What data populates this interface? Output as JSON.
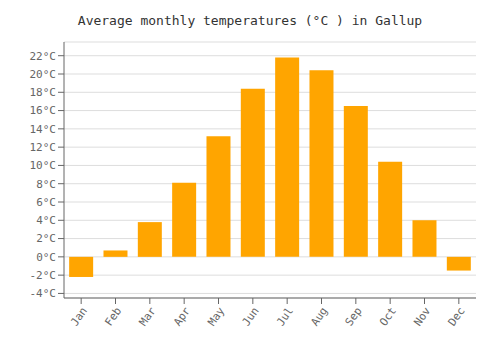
{
  "chart_data": {
    "type": "bar",
    "title": "Average monthly temperatures (°C ) in Gallup",
    "categories": [
      "Jan",
      "Feb",
      "Mar",
      "Apr",
      "May",
      "Jun",
      "Jul",
      "Aug",
      "Sep",
      "Oct",
      "Nov",
      "Dec"
    ],
    "values": [
      -2.2,
      0.7,
      3.8,
      8.1,
      13.2,
      18.4,
      21.8,
      20.4,
      16.5,
      10.4,
      4.0,
      -1.5
    ],
    "color": "#FFA500",
    "ylim": [
      -4.5,
      23.5
    ],
    "yticks": [
      {
        "value": -4,
        "label": "-4°C"
      },
      {
        "value": -2,
        "label": "-2°C"
      },
      {
        "value": 0,
        "label": "0°C"
      },
      {
        "value": 2,
        "label": "2°C"
      },
      {
        "value": 4,
        "label": "4°C"
      },
      {
        "value": 6,
        "label": "6°C"
      },
      {
        "value": 8,
        "label": "8°C"
      },
      {
        "value": 10,
        "label": "10°C"
      },
      {
        "value": 12,
        "label": "12°C"
      },
      {
        "value": 14,
        "label": "14°C"
      },
      {
        "value": 16,
        "label": "16°C"
      },
      {
        "value": 18,
        "label": "18°C"
      },
      {
        "value": 20,
        "label": "20°C"
      },
      {
        "value": 22,
        "label": "22°C"
      }
    ],
    "grid": true
  }
}
